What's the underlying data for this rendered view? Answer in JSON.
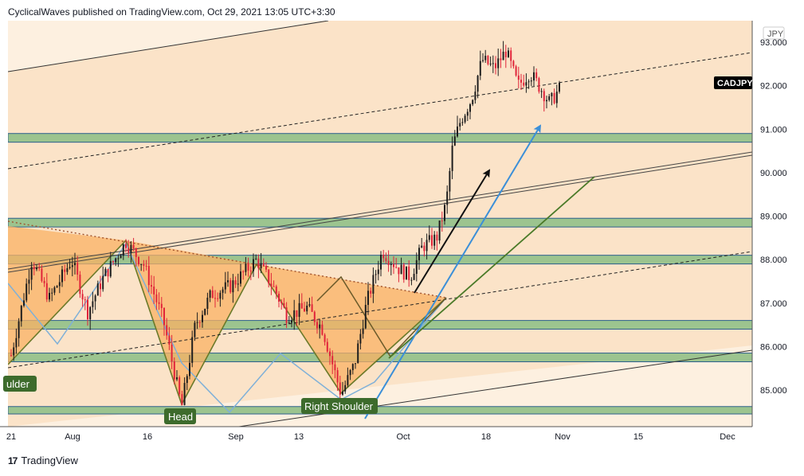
{
  "header": {
    "published_text": "CyclicalWaves published on TradingView.com, Oct 29, 2021 13:05 UTC+3:30"
  },
  "footer": {
    "brand": "TradingView",
    "logo_icon": "tradingview-logo-icon"
  },
  "colors": {
    "background_band": "#fbe3c8",
    "pattern_fill": "#f9b264",
    "zone_fill": "#9cc48f",
    "zone_border": "#2b5f8c",
    "candle_up": "#1e1e1e",
    "candle_down": "#e0243a",
    "label_bg": "#3d6b2c",
    "arrow_black": "#111111",
    "arrow_blue": "#3b8fd8",
    "trend_green": "#4a7a28",
    "projection_blue": "#7fb0d8",
    "price_tag_bg": "#000000"
  },
  "chart_data": {
    "type": "candlestick",
    "symbol": "CADJPY",
    "currency": "JPY",
    "last_price": 92.0,
    "ylim": [
      84.2,
      93.5
    ],
    "y_ticks": [
      "93.000",
      "92.000",
      "91.000",
      "90.000",
      "89.000",
      "88.000",
      "87.000",
      "86.000",
      "85.000"
    ],
    "x_ticks": [
      "21",
      "Aug",
      "16",
      "Sep",
      "13",
      "Oct",
      "18",
      "Nov",
      "15",
      "Dec"
    ],
    "support_resistance_zones": [
      [
        90.7,
        90.9
      ],
      [
        88.75,
        88.95
      ],
      [
        87.9,
        88.1
      ],
      [
        86.4,
        86.6
      ],
      [
        85.65,
        85.85
      ],
      [
        84.45,
        84.62
      ]
    ],
    "pattern": "Inverse head and shoulders",
    "annotations": [
      "ulder",
      "Head",
      "Right Shoulder"
    ],
    "key_points": {
      "left_shoulder_low": 85.55,
      "head_low": 84.6,
      "right_shoulder_low": 84.9,
      "neckline_high": 88.4,
      "recent_high": 93.05,
      "recent_low": 91.3
    }
  }
}
